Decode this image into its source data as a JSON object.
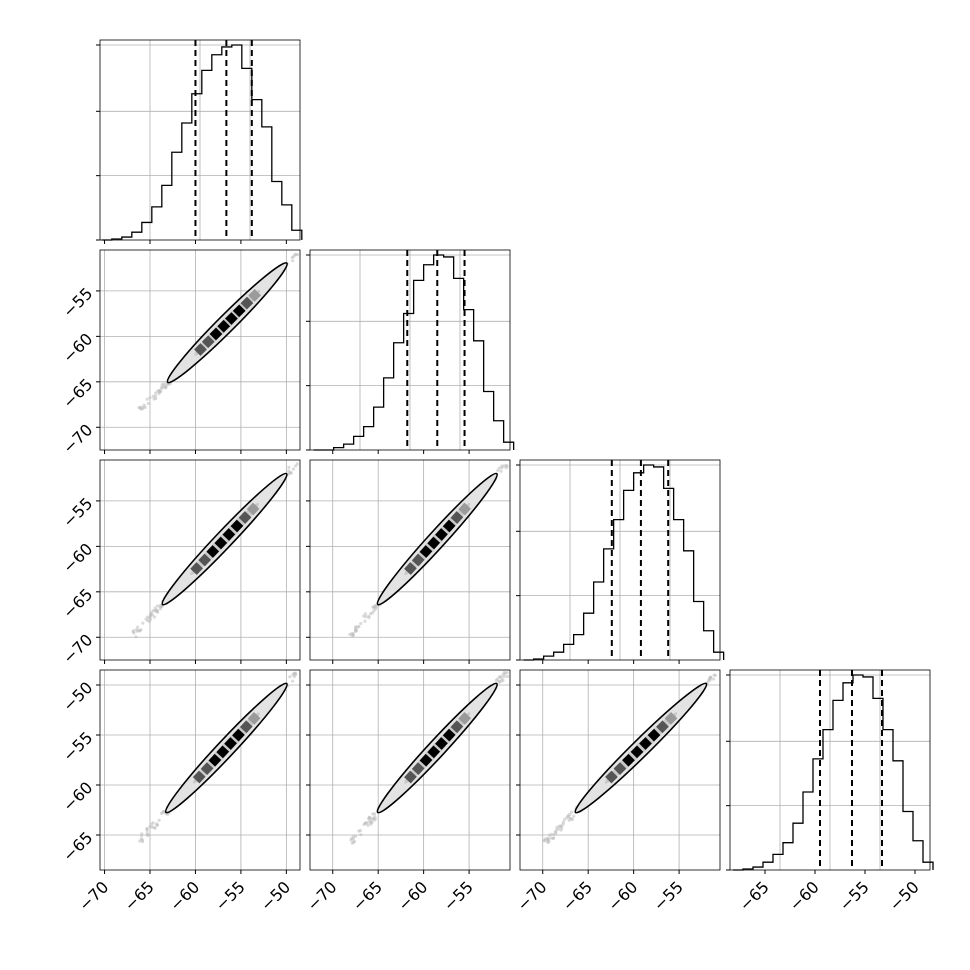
{
  "chart_data": {
    "type": "corner",
    "n_params": 4,
    "grid": true,
    "quantiles": [
      0.16,
      0.5,
      0.84
    ],
    "histograms": [
      {
        "param": 1,
        "range": [
          -70.5,
          -48.5
        ],
        "quantile_values": [
          -60.0,
          -56.6,
          -53.8
        ],
        "bin_edges": [
          -70.3,
          -69.2,
          -68.1,
          -67.0,
          -65.9,
          -64.8,
          -63.7,
          -62.6,
          -61.5,
          -60.4,
          -59.3,
          -58.2,
          -57.1,
          -56.0,
          -54.9,
          -53.8,
          -52.7,
          -51.6,
          -50.5,
          -49.4,
          -48.3
        ],
        "density": [
          0.0,
          0.005,
          0.015,
          0.04,
          0.09,
          0.17,
          0.28,
          0.45,
          0.6,
          0.75,
          0.87,
          0.95,
          0.99,
          1.0,
          0.88,
          0.72,
          0.58,
          0.3,
          0.18,
          0.05
        ]
      },
      {
        "param": 2,
        "range": [
          -72.5,
          -50.5
        ],
        "quantile_values": [
          -61.8,
          -58.5,
          -55.5
        ],
        "bin_edges": [
          -72.1,
          -71.0,
          -69.9,
          -68.8,
          -67.7,
          -66.6,
          -65.5,
          -64.4,
          -63.3,
          -62.2,
          -61.1,
          -60.0,
          -58.9,
          -57.8,
          -56.7,
          -55.6,
          -54.5,
          -53.4,
          -52.3,
          -51.2,
          -50.1
        ],
        "density": [
          0.0,
          0.0,
          0.012,
          0.03,
          0.07,
          0.12,
          0.22,
          0.37,
          0.55,
          0.7,
          0.87,
          0.95,
          1.0,
          0.99,
          0.88,
          0.72,
          0.56,
          0.3,
          0.15,
          0.04
        ]
      },
      {
        "param": 3,
        "range": [
          -72.5,
          -50.5
        ],
        "quantile_values": [
          -62.4,
          -59.2,
          -56.2
        ],
        "bin_edges": [
          -72.1,
          -71.0,
          -69.9,
          -68.8,
          -67.7,
          -66.6,
          -65.5,
          -64.4,
          -63.3,
          -62.2,
          -61.1,
          -60.0,
          -58.9,
          -57.8,
          -56.7,
          -55.6,
          -54.5,
          -53.4,
          -52.3,
          -51.2,
          -50.1
        ],
        "density": [
          0.0,
          0.005,
          0.02,
          0.04,
          0.08,
          0.13,
          0.24,
          0.4,
          0.57,
          0.72,
          0.87,
          0.96,
          1.0,
          0.99,
          0.88,
          0.72,
          0.56,
          0.3,
          0.15,
          0.04
        ]
      },
      {
        "param": 4,
        "range": [
          -68.5,
          -48.5
        ],
        "quantile_values": [
          -59.5,
          -56.3,
          -53.3
        ],
        "bin_edges": [
          -68.2,
          -67.2,
          -66.2,
          -65.2,
          -64.2,
          -63.2,
          -62.2,
          -61.2,
          -60.2,
          -59.2,
          -58.2,
          -57.2,
          -56.2,
          -55.2,
          -54.2,
          -53.2,
          -52.2,
          -51.2,
          -50.2,
          -49.2,
          -48.2
        ],
        "density": [
          0.0,
          0.005,
          0.015,
          0.04,
          0.08,
          0.14,
          0.24,
          0.4,
          0.57,
          0.72,
          0.87,
          0.96,
          1.0,
          0.99,
          0.88,
          0.72,
          0.56,
          0.3,
          0.15,
          0.04
        ]
      }
    ],
    "pairs": [
      {
        "row": 2,
        "col": 1,
        "x_range": [
          -70.5,
          -48.5
        ],
        "y_range": [
          -72.5,
          -50.5
        ],
        "center": [
          -56.5,
          -58.5
        ]
      },
      {
        "row": 3,
        "col": 1,
        "x_range": [
          -70.5,
          -48.5
        ],
        "y_range": [
          -72.5,
          -50.5
        ],
        "center": [
          -56.8,
          -59.2
        ]
      },
      {
        "row": 3,
        "col": 2,
        "x_range": [
          -72.5,
          -50.5
        ],
        "y_range": [
          -72.5,
          -50.5
        ],
        "center": [
          -58.5,
          -59.2
        ]
      },
      {
        "row": 4,
        "col": 1,
        "x_range": [
          -70.5,
          -48.5
        ],
        "y_range": [
          -68.5,
          -48.5
        ],
        "center": [
          -56.6,
          -56.3
        ]
      },
      {
        "row": 4,
        "col": 2,
        "x_range": [
          -72.5,
          -50.5
        ],
        "y_range": [
          -68.5,
          -48.5
        ],
        "center": [
          -58.5,
          -56.3
        ]
      },
      {
        "row": 4,
        "col": 3,
        "x_range": [
          -72.5,
          -50.5
        ],
        "y_range": [
          -68.5,
          -48.5
        ],
        "center": [
          -59.2,
          -56.3
        ]
      }
    ],
    "x_ticks": [
      {
        "col": 1,
        "values": [
          -70,
          -65,
          -60,
          -55,
          -50
        ],
        "labels": [
          "−70",
          "−65",
          "−60",
          "−55",
          "−50"
        ]
      },
      {
        "col": 2,
        "values": [
          -70,
          -65,
          -60,
          -55
        ],
        "labels": [
          "−70",
          "−65",
          "−60",
          "−55"
        ]
      },
      {
        "col": 3,
        "values": [
          -70,
          -65,
          -60,
          -55
        ],
        "labels": [
          "−70",
          "−65",
          "−60",
          "−55"
        ]
      },
      {
        "col": 4,
        "values": [
          -65,
          -60,
          -55,
          -50
        ],
        "labels": [
          "−65",
          "−60",
          "−55",
          "−50"
        ]
      }
    ],
    "y_ticks": [
      {
        "row": 2,
        "values": [
          -55,
          -60,
          -65,
          -70
        ],
        "labels": [
          "−55",
          "−60",
          "−65",
          "−70"
        ]
      },
      {
        "row": 3,
        "values": [
          -55,
          -60,
          -65,
          -70
        ],
        "labels": [
          "−55",
          "−60",
          "−65",
          "−70"
        ]
      },
      {
        "row": 4,
        "values": [
          -50,
          -55,
          -60,
          -65
        ],
        "labels": [
          "−50",
          "−55",
          "−60",
          "−65"
        ]
      }
    ]
  },
  "colors": {
    "line": "#000000",
    "grid": "#b0b0b0",
    "cloud": "#bdbdbd",
    "fill": "#e3e3e3",
    "dark": "#000000",
    "mid": "#555555",
    "light": "#9a9a9a"
  }
}
